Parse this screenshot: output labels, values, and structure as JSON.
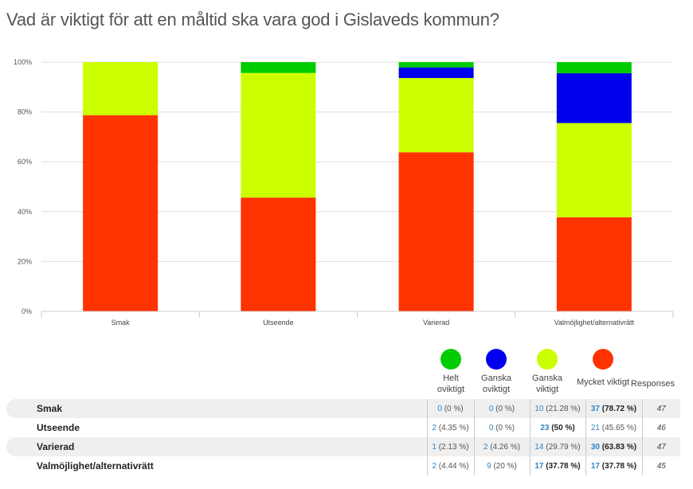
{
  "title": "Vad är viktigt för att en måltid ska vara god i Gislaveds kommun?",
  "chart_data": {
    "type": "bar",
    "stacked": true,
    "categories": [
      "Smak",
      "Utseende",
      "Varierad",
      "Valmöjlighet/alternativrätt"
    ],
    "ylim": [
      0,
      100
    ],
    "yticks": [
      "0%",
      "20%",
      "40%",
      "60%",
      "80%",
      "100%"
    ],
    "ytick_values": [
      0,
      20,
      40,
      60,
      80,
      100
    ],
    "grid": true,
    "series": [
      {
        "name": "Mycket viktigt",
        "color": "#ff3300",
        "values": [
          78.72,
          45.65,
          63.83,
          37.78
        ]
      },
      {
        "name": "Ganska viktigt",
        "color": "#ccff00",
        "values": [
          21.28,
          50,
          29.79,
          37.78
        ]
      },
      {
        "name": "Ganska oviktigt",
        "color": "#0000ee",
        "values": [
          0,
          0,
          4.26,
          20
        ]
      },
      {
        "name": "Helt oviktigt",
        "color": "#00cc00",
        "values": [
          0,
          4.35,
          2.13,
          4.44
        ]
      }
    ]
  },
  "legend": [
    {
      "label": "Helt oviktigt",
      "color": "#00cc00"
    },
    {
      "label": "Ganska oviktigt",
      "color": "#0000ee"
    },
    {
      "label": "Ganska viktigt",
      "color": "#ccff00"
    },
    {
      "label": "Mycket viktigt",
      "color": "#ff3300"
    }
  ],
  "table": {
    "responses_header": "Responses",
    "rows": [
      {
        "label": "Smak",
        "cells": [
          {
            "n": "0",
            "p": "(0 %)"
          },
          {
            "n": "0",
            "p": "(0 %)"
          },
          {
            "n": "10",
            "p": "(21.28 %)"
          },
          {
            "n": "37",
            "p": "(78.72 %)"
          }
        ],
        "responses": "47"
      },
      {
        "label": "Utseende",
        "cells": [
          {
            "n": "2",
            "p": "(4.35 %)"
          },
          {
            "n": "0",
            "p": "(0 %)"
          },
          {
            "n": "23",
            "p": "(50 %)"
          },
          {
            "n": "21",
            "p": "(45.65 %)"
          }
        ],
        "responses": "46"
      },
      {
        "label": "Varierad",
        "cells": [
          {
            "n": "1",
            "p": "(2.13 %)"
          },
          {
            "n": "2",
            "p": "(4.26 %)"
          },
          {
            "n": "14",
            "p": "(29.79 %)"
          },
          {
            "n": "30",
            "p": "(63.83 %)"
          }
        ],
        "responses": "47"
      },
      {
        "label": "Valmöjlighet/alternativrätt",
        "cells": [
          {
            "n": "2",
            "p": "(4.44 %)"
          },
          {
            "n": "9",
            "p": "(20 %)"
          },
          {
            "n": "17",
            "p": "(37.78 %)"
          },
          {
            "n": "17",
            "p": "(37.78 %)"
          }
        ],
        "responses": "45"
      }
    ]
  }
}
